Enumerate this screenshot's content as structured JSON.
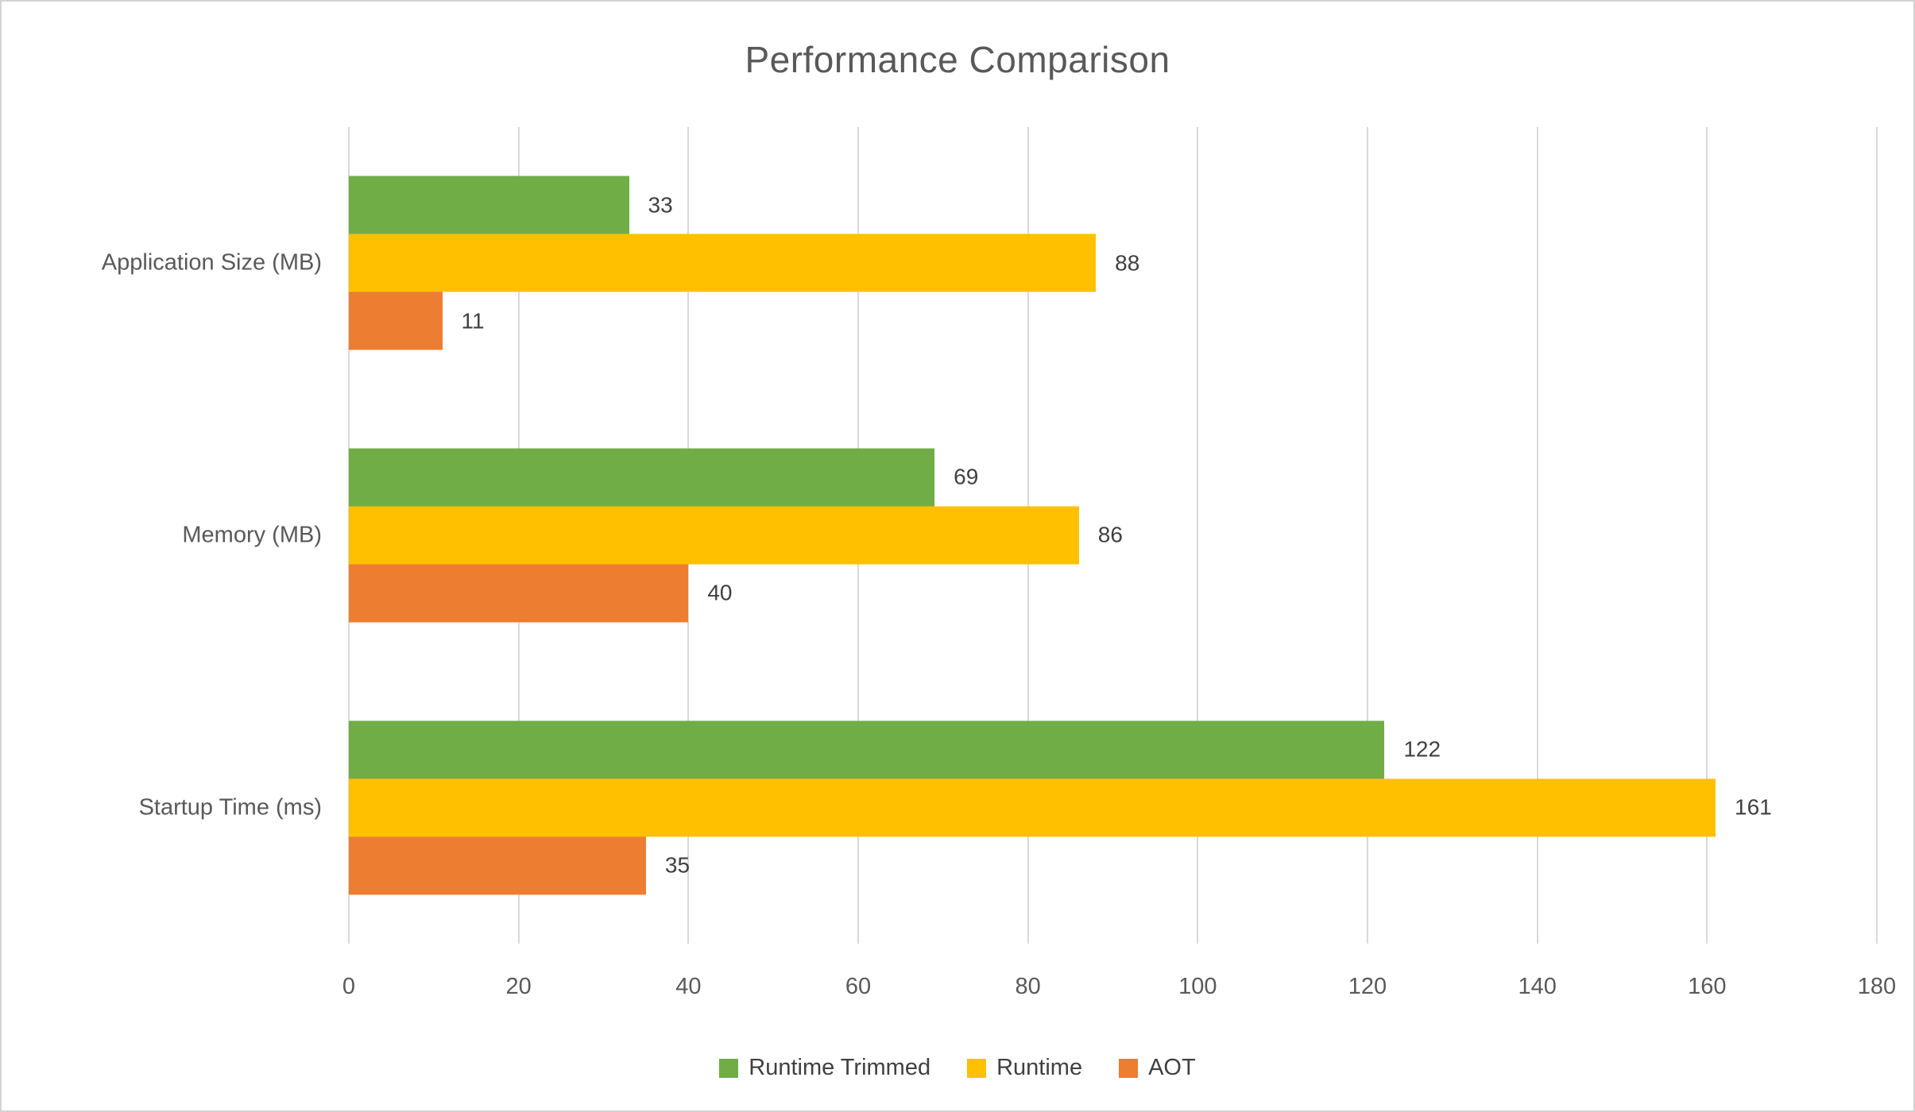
{
  "title": "Performance Comparison",
  "colors": {
    "runtime_trimmed": "#70AD47",
    "runtime": "#FFC000",
    "aot": "#ED7D31",
    "gridline": "#D9D9D9",
    "axis_text": "#595959",
    "value_text": "#404040"
  },
  "chart_data": {
    "type": "bar",
    "orientation": "horizontal",
    "title": "Performance Comparison",
    "categories": [
      "Application Size (MB)",
      "Memory (MB)",
      "Startup Time (ms)"
    ],
    "series": [
      {
        "name": "Runtime Trimmed",
        "color": "#70AD47",
        "values": [
          33,
          69,
          122
        ]
      },
      {
        "name": "Runtime",
        "color": "#FFC000",
        "values": [
          88,
          86,
          161
        ]
      },
      {
        "name": "AOT",
        "color": "#ED7D31",
        "values": [
          11,
          40,
          35
        ]
      }
    ],
    "xlabel": "",
    "ylabel": "",
    "xlim": [
      0,
      180
    ],
    "xticks": [
      0,
      20,
      40,
      60,
      80,
      100,
      120,
      140,
      160,
      180
    ],
    "grid": true,
    "data_labels": true,
    "legend_position": "bottom"
  },
  "legend": [
    {
      "label": "Runtime Trimmed",
      "color": "#70AD47"
    },
    {
      "label": "Runtime",
      "color": "#FFC000"
    },
    {
      "label": "AOT",
      "color": "#ED7D31"
    }
  ]
}
